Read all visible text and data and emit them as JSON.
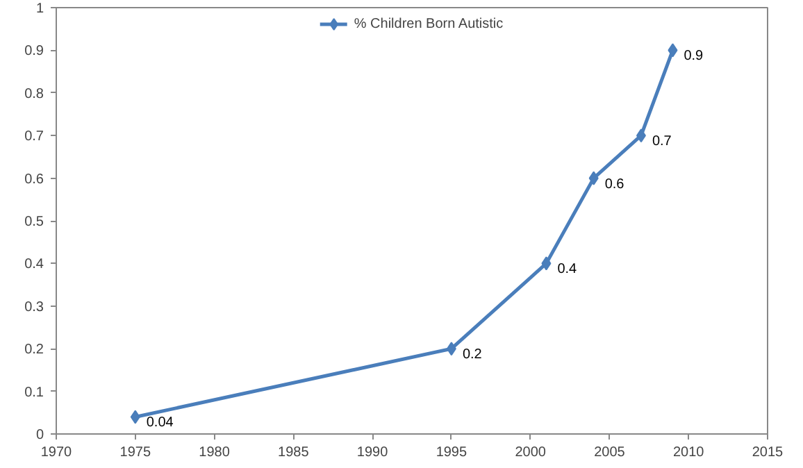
{
  "chart_data": {
    "type": "line",
    "x": [
      1975,
      1995,
      2001,
      2004,
      2007,
      2009
    ],
    "series": [
      {
        "name": "% Children Born Autistic",
        "color": "#4a7ebb",
        "values": [
          0.04,
          0.2,
          0.4,
          0.6,
          0.7,
          0.9
        ]
      }
    ],
    "xlim": [
      1970,
      2015
    ],
    "xticks": [
      1970,
      1975,
      1980,
      1985,
      1990,
      1995,
      2000,
      2005,
      2010,
      2015
    ],
    "ylim": [
      0,
      1
    ],
    "yticks": [
      0,
      0.1,
      0.2,
      0.3,
      0.4,
      0.5,
      0.6,
      0.7,
      0.8,
      0.9,
      1
    ],
    "data_labels": true,
    "legend": "top",
    "marker": "diamond",
    "line_style": "solid",
    "grid": false
  }
}
